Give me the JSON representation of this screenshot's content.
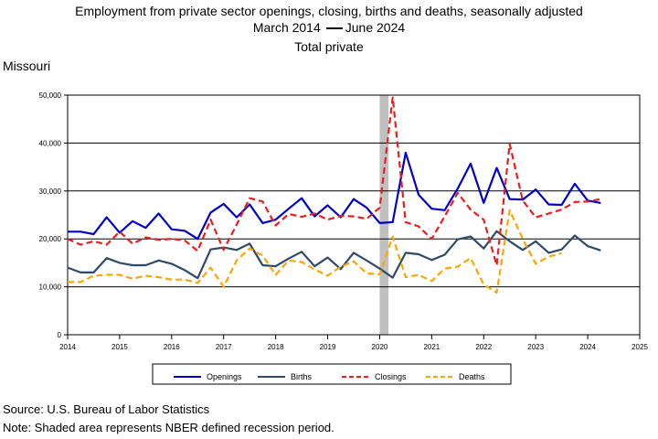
{
  "title": {
    "line1": "Employment from private sector openings, closing, births and deaths, seasonally adjusted",
    "line2_start": "March 2014",
    "line2_end": "June 2024",
    "line3": "Total private"
  },
  "region": "Missouri",
  "footer": {
    "source": "Source: U.S. Bureau of Labor Statistics",
    "note": "Note: Shaded area represents NBER defined recession period."
  },
  "chart_data": {
    "type": "line",
    "xlim": [
      2014,
      2025
    ],
    "ylim": [
      0,
      50000
    ],
    "x_ticks": [
      "2014",
      "2015",
      "2016",
      "2017",
      "2018",
      "2019",
      "2020",
      "2021",
      "2022",
      "2023",
      "2024",
      "2025"
    ],
    "y_ticks": [
      "0",
      "10,000",
      "20,000",
      "30,000",
      "40,000",
      "50,000"
    ],
    "y_tick_values": [
      0,
      10000,
      20000,
      30000,
      40000,
      50000
    ],
    "grid": "horizontal",
    "legend_position": "bottom",
    "recession": {
      "start": 2020.0,
      "end": 2020.17,
      "color": "#c0c0c0"
    },
    "x": [
      2014.0,
      2014.25,
      2014.5,
      2014.75,
      2015.0,
      2015.25,
      2015.5,
      2015.75,
      2016.0,
      2016.25,
      2016.5,
      2016.75,
      2017.0,
      2017.25,
      2017.5,
      2017.75,
      2018.0,
      2018.25,
      2018.5,
      2018.75,
      2019.0,
      2019.25,
      2019.5,
      2019.75,
      2020.0,
      2020.25,
      2020.5,
      2020.75,
      2021.0,
      2021.25,
      2021.5,
      2021.75,
      2022.0,
      2022.25,
      2022.5,
      2022.75,
      2023.0,
      2023.25,
      2023.5,
      2023.75,
      2024.0,
      2024.25
    ],
    "series": [
      {
        "name": "Openings",
        "color": "#0000cc",
        "style": "solid",
        "values": [
          21500,
          21500,
          21000,
          24500,
          21300,
          23700,
          22300,
          25300,
          22000,
          21700,
          20000,
          25500,
          27300,
          24500,
          27200,
          23300,
          24000,
          26300,
          28500,
          24700,
          27000,
          24500,
          28300,
          26500,
          23300,
          23500,
          38000,
          29200,
          26300,
          26000,
          30500,
          35700,
          27500,
          34800,
          28300,
          28200,
          30300,
          27200,
          27100,
          31500,
          28000,
          27500
        ]
      },
      {
        "name": "Births",
        "color": "#2e4a6b",
        "style": "solid",
        "values": [
          14000,
          13000,
          13000,
          16000,
          15000,
          14500,
          14500,
          15500,
          14800,
          13500,
          11800,
          17800,
          18200,
          17700,
          19000,
          14500,
          14300,
          15900,
          17300,
          14300,
          16100,
          13700,
          17100,
          15500,
          13800,
          11900,
          17100,
          16800,
          15600,
          16700,
          19900,
          20500,
          18000,
          21600,
          19500,
          17700,
          19500,
          17100,
          17800,
          20700,
          18500,
          17600
        ]
      },
      {
        "name": "Closings",
        "color": "#ee1c1c",
        "style": "dashed",
        "values": [
          20000,
          18800,
          19500,
          18800,
          21500,
          19000,
          20300,
          19800,
          20000,
          19700,
          17500,
          24000,
          17700,
          23000,
          28500,
          27800,
          22800,
          25200,
          24600,
          25300,
          24000,
          24800,
          24700,
          24200,
          26500,
          49500,
          23500,
          22600,
          20000,
          24700,
          29600,
          26100,
          24000,
          14500,
          39800,
          28000,
          24500,
          25300,
          26100,
          27700,
          27800,
          28300
        ]
      },
      {
        "name": "Deaths",
        "color": "#ffa500",
        "style": "dashed",
        "values": [
          11000,
          11000,
          12300,
          12500,
          12500,
          11700,
          12300,
          12000,
          11500,
          11500,
          10800,
          14000,
          10000,
          15500,
          18000,
          16500,
          12500,
          15500,
          15200,
          13600,
          12300,
          14200,
          15300,
          12800,
          12600,
          20500,
          12000,
          12500,
          11200,
          13800,
          14200,
          16000,
          10500,
          8800,
          26000,
          20000,
          14800,
          16300,
          17000,
          null,
          null,
          null
        ]
      }
    ]
  }
}
